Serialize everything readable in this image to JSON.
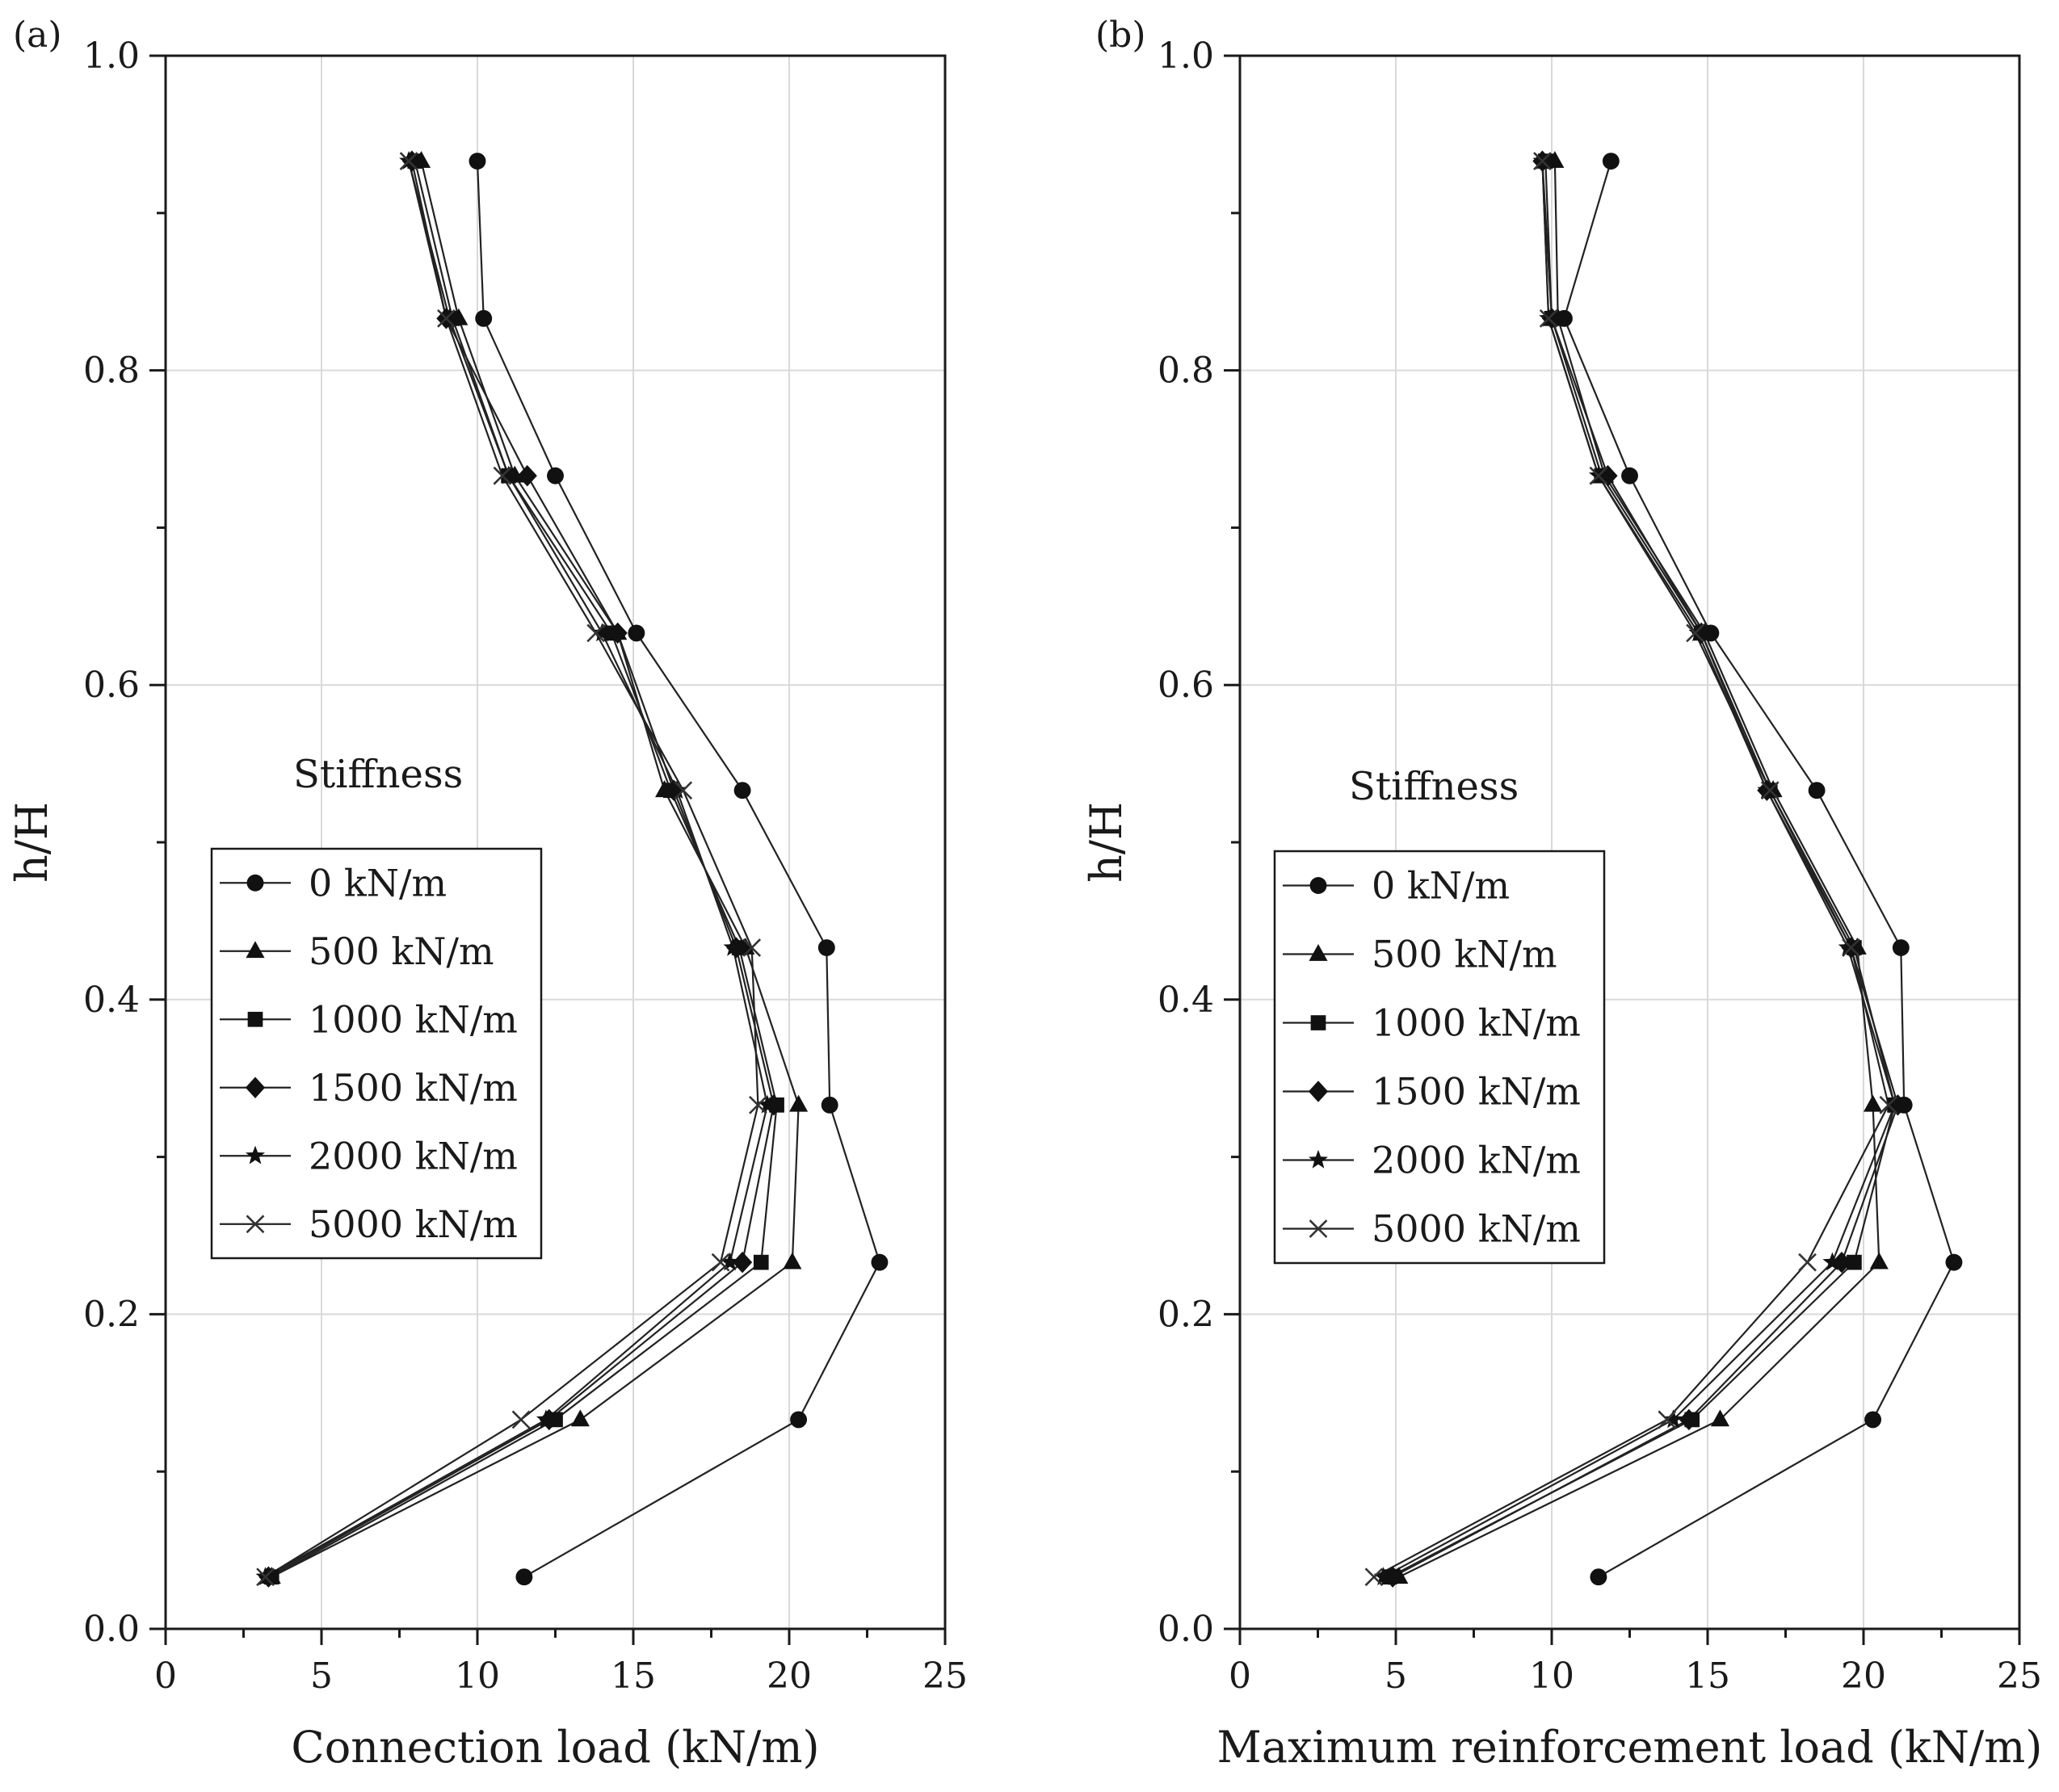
{
  "chart_data": [
    {
      "panel_label": "(a)",
      "type": "line",
      "xlabel": "Connection load (kN/m)",
      "ylabel": "h/H",
      "xlim": [
        0,
        25
      ],
      "ylim": [
        0,
        1.0
      ],
      "xticks": [
        "0",
        "5",
        "10",
        "15",
        "20",
        "25"
      ],
      "yticks": [
        "0.0",
        "0.2",
        "0.4",
        "0.6",
        "0.8",
        "1.0"
      ],
      "grid": true,
      "legend_title": "Stiffness",
      "legend_position": "center-left",
      "y": [
        0.033,
        0.133,
        0.233,
        0.333,
        0.433,
        0.533,
        0.633,
        0.733,
        0.833,
        0.933
      ],
      "series": [
        {
          "name": "0 kN/m",
          "marker": "circle",
          "x": [
            11.5,
            20.3,
            22.9,
            21.3,
            21.2,
            18.5,
            15.1,
            12.5,
            10.2,
            10.0
          ]
        },
        {
          "name": "500 kN/m",
          "marker": "triangle",
          "x": [
            3.4,
            13.3,
            20.1,
            20.3,
            18.6,
            16.0,
            14.5,
            11.2,
            9.4,
            8.2
          ]
        },
        {
          "name": "1000 kN/m",
          "marker": "square",
          "x": [
            3.4,
            12.5,
            19.1,
            19.6,
            18.4,
            16.2,
            14.3,
            11.0,
            9.2,
            8.0
          ]
        },
        {
          "name": "1500 kN/m",
          "marker": "diamond",
          "x": [
            3.3,
            12.3,
            18.5,
            19.5,
            18.3,
            16.3,
            14.5,
            11.6,
            9.0,
            7.9
          ]
        },
        {
          "name": "2000 kN/m",
          "marker": "star",
          "x": [
            3.2,
            12.2,
            18.1,
            19.3,
            18.2,
            16.4,
            14.0,
            11.0,
            9.1,
            7.8
          ]
        },
        {
          "name": "5000 kN/m",
          "marker": "x",
          "x": [
            3.2,
            11.4,
            17.8,
            19.0,
            18.8,
            16.6,
            13.8,
            10.8,
            9.0,
            7.8
          ]
        }
      ]
    },
    {
      "panel_label": "(b)",
      "type": "line",
      "xlabel": "Maximum reinforcement load (kN/m)",
      "ylabel": "h/H",
      "xlim": [
        0,
        25
      ],
      "ylim": [
        0,
        1.0
      ],
      "xticks": [
        "0",
        "5",
        "10",
        "15",
        "20",
        "25"
      ],
      "yticks": [
        "0.0",
        "0.2",
        "0.4",
        "0.6",
        "0.8",
        "1.0"
      ],
      "grid": true,
      "legend_title": "Stiffness",
      "legend_position": "center-left",
      "y": [
        0.033,
        0.133,
        0.233,
        0.333,
        0.433,
        0.533,
        0.633,
        0.733,
        0.833,
        0.933
      ],
      "series": [
        {
          "name": "0 kN/m",
          "marker": "circle",
          "x": [
            11.5,
            20.3,
            22.9,
            21.3,
            21.2,
            18.5,
            15.1,
            12.5,
            10.4,
            11.9
          ]
        },
        {
          "name": "500 kN/m",
          "marker": "triangle",
          "x": [
            5.1,
            15.4,
            20.5,
            20.3,
            19.8,
            17.1,
            14.9,
            11.7,
            10.2,
            10.1
          ]
        },
        {
          "name": "1000 kN/m",
          "marker": "square",
          "x": [
            4.8,
            14.5,
            19.7,
            21.0,
            19.7,
            17.0,
            14.8,
            11.6,
            10.0,
            9.8
          ]
        },
        {
          "name": "1500 kN/m",
          "marker": "diamond",
          "x": [
            4.9,
            14.4,
            19.3,
            21.1,
            19.6,
            16.9,
            14.8,
            11.8,
            10.0,
            9.7
          ]
        },
        {
          "name": "2000 kN/m",
          "marker": "star",
          "x": [
            4.6,
            13.9,
            19.0,
            21.0,
            19.5,
            16.9,
            14.7,
            11.5,
            9.9,
            9.7
          ]
        },
        {
          "name": "5000 kN/m",
          "marker": "x",
          "x": [
            4.3,
            13.7,
            18.2,
            20.8,
            19.6,
            17.0,
            14.6,
            11.5,
            9.9,
            9.7
          ]
        }
      ]
    }
  ]
}
